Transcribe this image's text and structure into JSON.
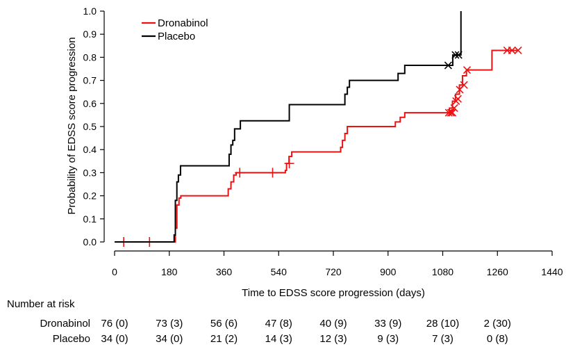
{
  "chart_data": {
    "type": "line",
    "xlabel": "Time to EDSS score progression (days)",
    "ylabel": "Probability of EDSS score progression",
    "xlim": [
      0,
      1440
    ],
    "ylim": [
      0,
      1.0
    ],
    "x_ticks": [
      "0",
      "180",
      "360",
      "540",
      "720",
      "900",
      "1080",
      "1260",
      "1440"
    ],
    "y_ticks": [
      "0.0",
      "0.1",
      "0.2",
      "0.3",
      "0.4",
      "0.5",
      "0.6",
      "0.7",
      "0.8",
      "0.9",
      "1.0"
    ],
    "legend_position": "top-left",
    "series": [
      {
        "name": "Dronabinol",
        "color": "#ee1111",
        "steps": [
          [
            0,
            0
          ],
          [
            200,
            0.06
          ],
          [
            205,
            0.16
          ],
          [
            212,
            0.19
          ],
          [
            218,
            0.2
          ],
          [
            374,
            0.23
          ],
          [
            383,
            0.26
          ],
          [
            392,
            0.29
          ],
          [
            400,
            0.3
          ],
          [
            562,
            0.31
          ],
          [
            566,
            0.34
          ],
          [
            574,
            0.37
          ],
          [
            583,
            0.39
          ],
          [
            744,
            0.41
          ],
          [
            750,
            0.44
          ],
          [
            758,
            0.47
          ],
          [
            766,
            0.5
          ],
          [
            924,
            0.52
          ],
          [
            940,
            0.54
          ],
          [
            955,
            0.56
          ],
          [
            1102,
            0.58
          ],
          [
            1112,
            0.61
          ],
          [
            1122,
            0.64
          ],
          [
            1135,
            0.68
          ],
          [
            1145,
            0.72
          ],
          [
            1158,
            0.745
          ],
          [
            1242,
            0.83
          ],
          [
            1328,
            0.83
          ]
        ],
        "censored": [
          [
            30,
            0
          ],
          [
            115,
            0
          ],
          [
            412,
            0.3
          ],
          [
            520,
            0.3
          ],
          [
            575,
            0.34
          ],
          [
            1100,
            0.56
          ],
          [
            1107,
            0.56
          ],
          [
            1112,
            0.56
          ],
          [
            1118,
            0.58
          ],
          [
            1124,
            0.61
          ],
          [
            1130,
            0.62
          ],
          [
            1136,
            0.66
          ],
          [
            1150,
            0.68
          ],
          [
            1160,
            0.745
          ],
          [
            1292,
            0.83
          ],
          [
            1308,
            0.83
          ],
          [
            1328,
            0.83
          ]
        ]
      },
      {
        "name": "Placebo",
        "color": "#000000",
        "steps": [
          [
            0,
            0
          ],
          [
            196,
            0.03
          ],
          [
            200,
            0.18
          ],
          [
            205,
            0.26
          ],
          [
            210,
            0.29
          ],
          [
            217,
            0.33
          ],
          [
            377,
            0.38
          ],
          [
            383,
            0.42
          ],
          [
            389,
            0.44
          ],
          [
            395,
            0.49
          ],
          [
            414,
            0.525
          ],
          [
            575,
            0.595
          ],
          [
            758,
            0.64
          ],
          [
            766,
            0.67
          ],
          [
            773,
            0.7
          ],
          [
            933,
            0.73
          ],
          [
            955,
            0.765
          ],
          [
            1113,
            0.81
          ],
          [
            1140,
            0.81
          ],
          [
            1140,
            1.0
          ]
        ],
        "censored": [
          [
            1098,
            0.765
          ],
          [
            1122,
            0.81
          ],
          [
            1132,
            0.81
          ]
        ]
      }
    ],
    "risk_table": {
      "title": "Number at risk",
      "rows": [
        {
          "label": "Dronabinol",
          "values": [
            "76 (0)",
            "73 (3)",
            "56 (6)",
            "47 (8)",
            "40 (9)",
            "33 (9)",
            "28 (10)",
            "2 (30)"
          ]
        },
        {
          "label": "Placebo",
          "values": [
            "34 (0)",
            "34 (0)",
            "21 (2)",
            "14 (3)",
            "12 (3)",
            "9 (3)",
            "7 (3)",
            "0 (8)"
          ]
        }
      ]
    }
  }
}
